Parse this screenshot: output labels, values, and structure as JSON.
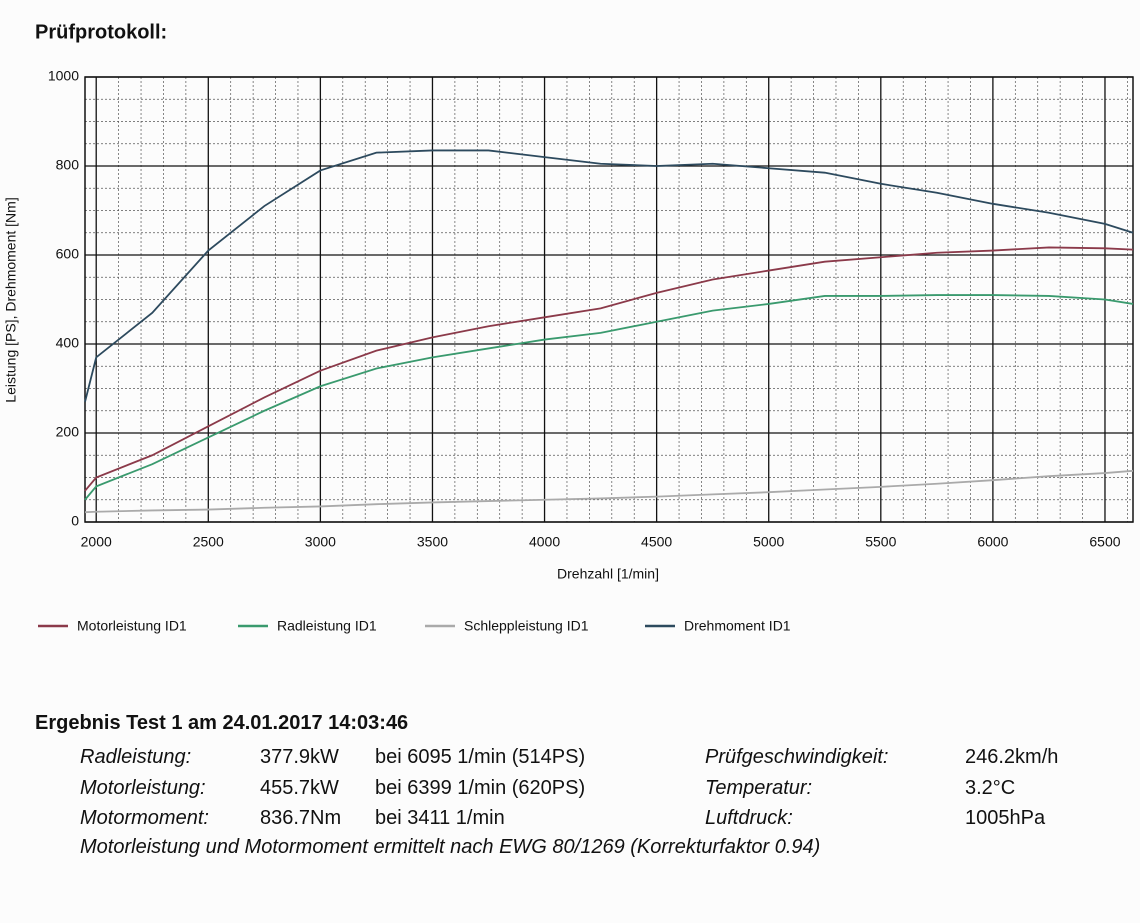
{
  "header": {
    "title": "Prüfprotokoll:"
  },
  "chart_data": {
    "type": "line",
    "xlabel": "Drehzahl [1/min]",
    "ylabel": "Leistung [PS], Drehmoment [Nm]",
    "x": [
      1950,
      2000,
      2250,
      2500,
      2750,
      3000,
      3250,
      3500,
      3750,
      4000,
      4250,
      4500,
      4750,
      5000,
      5250,
      5500,
      5750,
      6000,
      6250,
      6500,
      6625
    ],
    "series": [
      {
        "name": "Motorleistung ID1",
        "color": "#8b3a4a",
        "values": [
          70,
          100,
          150,
          215,
          280,
          340,
          385,
          415,
          440,
          460,
          480,
          515,
          545,
          565,
          585,
          595,
          605,
          610,
          617,
          615,
          612
        ]
      },
      {
        "name": "Radleistung ID1",
        "color": "#3a9a6e",
        "values": [
          50,
          80,
          130,
          190,
          250,
          305,
          345,
          370,
          390,
          410,
          425,
          450,
          475,
          490,
          508,
          508,
          510,
          510,
          508,
          500,
          490
        ]
      },
      {
        "name": "Schleppleistung ID1",
        "color": "#aaaaaa",
        "values": [
          22,
          23,
          26,
          28,
          32,
          35,
          40,
          44,
          47,
          50,
          53,
          57,
          62,
          67,
          73,
          79,
          86,
          94,
          103,
          110,
          115
        ]
      },
      {
        "name": "Drehmoment ID1",
        "color": "#2d4a5e",
        "values": [
          270,
          370,
          470,
          610,
          710,
          790,
          830,
          835,
          835,
          820,
          805,
          800,
          805,
          795,
          785,
          760,
          740,
          715,
          695,
          670,
          650
        ]
      }
    ],
    "xlim": [
      1950,
      6625
    ],
    "ylim": [
      0,
      1000
    ],
    "xticks": [
      2000,
      2500,
      3000,
      3500,
      4000,
      4500,
      5000,
      5500,
      6000,
      6500
    ],
    "yticks": [
      0,
      200,
      400,
      600,
      800,
      1000
    ],
    "grid": true
  },
  "results": {
    "heading": "Ergebnis Test 1 am 24.01.2017 14:03:46",
    "rows": [
      [
        "Radleistung:",
        "377.9kW",
        "bei 6095 1/min (514PS)",
        "Prüfgeschwindigkeit:",
        "246.2km/h"
      ],
      [
        "Motorleistung:",
        "455.7kW",
        "bei 6399 1/min (620PS)",
        "Temperatur:",
        "3.2°C"
      ],
      [
        "Motormoment:",
        "836.7Nm",
        "bei 3411 1/min",
        "Luftdruck:",
        "1005hPa"
      ]
    ],
    "note": "Motorleistung und Motormoment ermittelt nach EWG 80/1269 (Korrekturfaktor 0.94)"
  }
}
